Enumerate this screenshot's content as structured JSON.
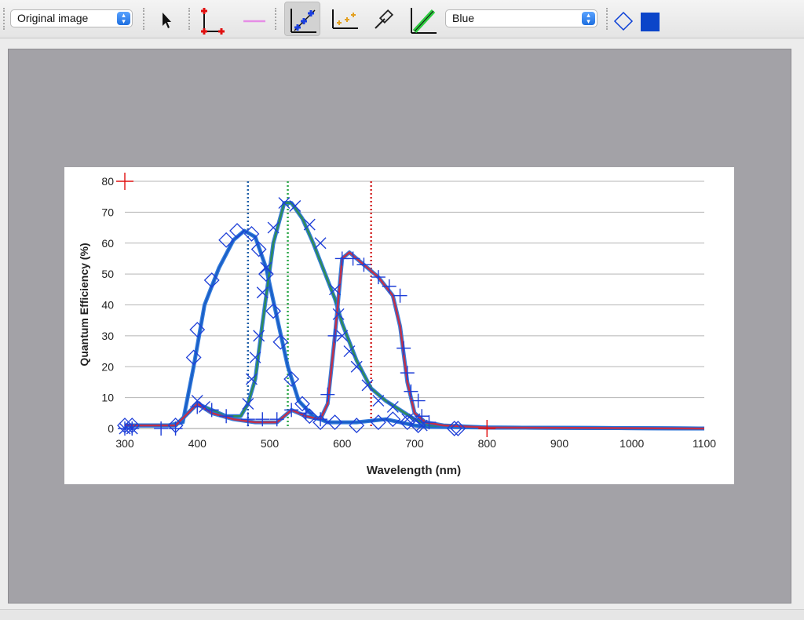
{
  "toolbar": {
    "image_mode_select": {
      "value": "Original image"
    },
    "tools": [
      {
        "name": "select-pointer",
        "icon": "arrow-pointer-icon"
      },
      {
        "name": "axis-points",
        "icon": "axis-points-icon"
      },
      {
        "name": "scale-bar",
        "icon": "scale-bar-icon"
      },
      {
        "name": "manual-points",
        "icon": "manual-points-icon",
        "active": true
      },
      {
        "name": "point-match",
        "icon": "point-match-icon"
      },
      {
        "name": "color-picker",
        "icon": "eyedropper-icon"
      },
      {
        "name": "segment-fill",
        "icon": "segment-fill-icon"
      }
    ],
    "curve_select": {
      "value": "Blue"
    },
    "point_style": {
      "icon": "diamond-outline-icon",
      "color": "#0a3fd6"
    },
    "line_color": {
      "icon": "color-swatch-icon",
      "color": "#0b45c9"
    }
  },
  "chart_data": {
    "type": "line",
    "xlabel": "Wavelength (nm)",
    "ylabel": "Quantum Efficiency (%)",
    "xlim": [
      300,
      1100
    ],
    "ylim": [
      0,
      80
    ],
    "x_ticks": [
      "300",
      "400",
      "500",
      "600",
      "700",
      "800",
      "900",
      "1000",
      "1100"
    ],
    "y_ticks": [
      "0",
      "10",
      "20",
      "30",
      "40",
      "50",
      "60",
      "70",
      "80"
    ],
    "grid": "horizontal",
    "vertical_markers": [
      {
        "x": 470,
        "color": "#1f5fa8"
      },
      {
        "x": 525,
        "color": "#2ea84a"
      },
      {
        "x": 640,
        "color": "#d42a2a"
      }
    ],
    "series": [
      {
        "color": "#1a5fc7",
        "points": [
          [
            300,
            1
          ],
          [
            360,
            1
          ],
          [
            380,
            2
          ],
          [
            395,
            20
          ],
          [
            410,
            40
          ],
          [
            430,
            52
          ],
          [
            450,
            61
          ],
          [
            465,
            64
          ],
          [
            480,
            62
          ],
          [
            495,
            52
          ],
          [
            510,
            36
          ],
          [
            525,
            20
          ],
          [
            540,
            9
          ],
          [
            560,
            4
          ],
          [
            580,
            2
          ],
          [
            620,
            2
          ],
          [
            660,
            3
          ],
          [
            680,
            2
          ],
          [
            700,
            1
          ],
          [
            720,
            0.5
          ],
          [
            800,
            0.3
          ],
          [
            1100,
            0
          ]
        ]
      },
      {
        "color": "#2e8b57",
        "points": [
          [
            300,
            1
          ],
          [
            370,
            1
          ],
          [
            400,
            8
          ],
          [
            420,
            6
          ],
          [
            440,
            4
          ],
          [
            460,
            4
          ],
          [
            470,
            8
          ],
          [
            480,
            16
          ],
          [
            490,
            34
          ],
          [
            505,
            60
          ],
          [
            520,
            73
          ],
          [
            530,
            73
          ],
          [
            545,
            68
          ],
          [
            560,
            60
          ],
          [
            580,
            48
          ],
          [
            590,
            42
          ],
          [
            600,
            34
          ],
          [
            620,
            22
          ],
          [
            640,
            13
          ],
          [
            660,
            9
          ],
          [
            680,
            6
          ],
          [
            700,
            3
          ],
          [
            720,
            1
          ],
          [
            800,
            0.3
          ],
          [
            1100,
            0
          ]
        ]
      },
      {
        "color": "#c0304a",
        "points": [
          [
            300,
            1
          ],
          [
            370,
            1
          ],
          [
            400,
            8
          ],
          [
            420,
            5
          ],
          [
            450,
            3
          ],
          [
            480,
            2
          ],
          [
            510,
            2
          ],
          [
            530,
            6
          ],
          [
            550,
            4
          ],
          [
            570,
            3
          ],
          [
            580,
            8
          ],
          [
            590,
            30
          ],
          [
            600,
            55
          ],
          [
            610,
            57
          ],
          [
            630,
            53
          ],
          [
            650,
            49
          ],
          [
            670,
            43
          ],
          [
            680,
            33
          ],
          [
            690,
            15
          ],
          [
            700,
            5
          ],
          [
            715,
            2
          ],
          [
            740,
            1
          ],
          [
            800,
            0.3
          ],
          [
            1100,
            0
          ]
        ]
      }
    ],
    "markers_diamond": [
      [
        300,
        1
      ],
      [
        310,
        1
      ],
      [
        370,
        1
      ],
      [
        395,
        23
      ],
      [
        400,
        32
      ],
      [
        420,
        48
      ],
      [
        440,
        61
      ],
      [
        455,
        64
      ],
      [
        475,
        63
      ],
      [
        485,
        58
      ],
      [
        495,
        50
      ],
      [
        505,
        38
      ],
      [
        515,
        28
      ],
      [
        530,
        16
      ],
      [
        545,
        8
      ],
      [
        555,
        4
      ],
      [
        570,
        2
      ],
      [
        590,
        2
      ],
      [
        620,
        1
      ],
      [
        650,
        2
      ],
      [
        670,
        3
      ],
      [
        690,
        2
      ],
      [
        705,
        1
      ],
      [
        755,
        0
      ],
      [
        760,
        0
      ]
    ],
    "markers_x": [
      [
        300,
        0
      ],
      [
        310,
        0
      ],
      [
        400,
        9
      ],
      [
        410,
        7
      ],
      [
        470,
        8
      ],
      [
        475,
        16
      ],
      [
        480,
        23
      ],
      [
        485,
        30
      ],
      [
        490,
        44
      ],
      [
        495,
        52
      ],
      [
        505,
        65
      ],
      [
        520,
        73
      ],
      [
        535,
        72
      ],
      [
        555,
        66
      ],
      [
        570,
        60
      ],
      [
        590,
        45
      ],
      [
        595,
        37
      ],
      [
        600,
        30
      ],
      [
        610,
        25
      ],
      [
        620,
        20
      ],
      [
        635,
        14
      ],
      [
        650,
        9
      ],
      [
        670,
        7
      ],
      [
        690,
        3
      ],
      [
        700,
        3
      ],
      [
        710,
        1
      ]
    ],
    "markers_plus": [
      [
        300,
        0
      ],
      [
        310,
        0
      ],
      [
        350,
        0
      ],
      [
        370,
        0
      ],
      [
        400,
        7
      ],
      [
        420,
        6
      ],
      [
        440,
        4
      ],
      [
        470,
        3
      ],
      [
        490,
        3
      ],
      [
        510,
        3
      ],
      [
        530,
        6
      ],
      [
        550,
        5
      ],
      [
        570,
        3
      ],
      [
        580,
        11
      ],
      [
        590,
        30
      ],
      [
        600,
        55
      ],
      [
        615,
        55
      ],
      [
        630,
        53
      ],
      [
        650,
        49
      ],
      [
        665,
        46
      ],
      [
        680,
        43
      ],
      [
        685,
        26
      ],
      [
        690,
        18
      ],
      [
        695,
        12
      ],
      [
        705,
        9
      ],
      [
        710,
        4
      ],
      [
        720,
        2
      ]
    ],
    "calibration_points": [
      [
        300,
        80
      ],
      [
        800,
        0
      ]
    ]
  }
}
